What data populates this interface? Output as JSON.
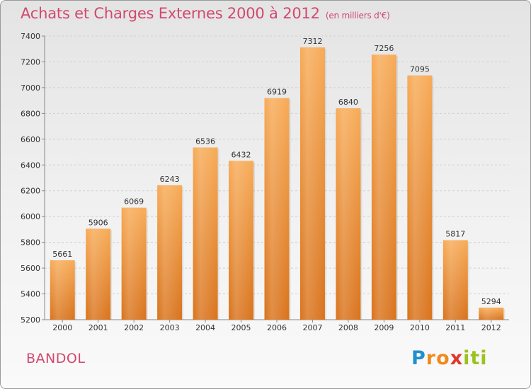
{
  "title": "Achats et Charges Externes 2000 à 2012",
  "subtitle": "(en milliers d'€)",
  "city": "BANDOL",
  "logo": {
    "text": "Proxiti",
    "letters": [
      "P",
      "r",
      "o",
      "x",
      "i",
      "t",
      "i"
    ],
    "colors": [
      "#1f8fd0",
      "#f08a1c",
      "#f08a1c",
      "#e0362c",
      "#9bc31f",
      "#9bc31f",
      "#9bc31f"
    ]
  },
  "colors": {
    "bar_top": "#f7ab57",
    "bar_bottom": "#d9731c",
    "title": "#d2486f"
  },
  "chart_data": {
    "type": "bar",
    "title": "Achats et Charges Externes 2000 à 2012",
    "subtitle": "(en milliers d'€)",
    "categories": [
      "2000",
      "2001",
      "2002",
      "2003",
      "2004",
      "2005",
      "2006",
      "2007",
      "2008",
      "2009",
      "2010",
      "2011",
      "2012"
    ],
    "values": [
      5661,
      5906,
      6069,
      6243,
      6536,
      6432,
      6919,
      7312,
      6840,
      7256,
      7095,
      5817,
      5294
    ],
    "ylim": [
      5200,
      7400
    ],
    "yticks": [
      5200,
      5400,
      5600,
      5800,
      6000,
      6200,
      6400,
      6600,
      6800,
      7000,
      7200,
      7400
    ],
    "grid": true,
    "xlabel": "",
    "ylabel": ""
  }
}
